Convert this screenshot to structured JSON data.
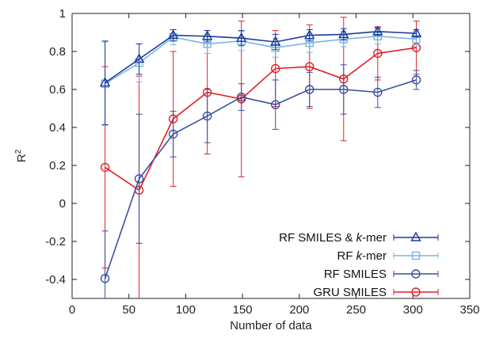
{
  "chart_data": {
    "type": "line",
    "xlabel": "Number of data",
    "ylabel": "R²",
    "ylabel_parts": {
      "base": "R",
      "sup": "2"
    },
    "xlim": [
      0,
      350
    ],
    "ylim": [
      -0.5,
      1.0
    ],
    "xticks": [
      0,
      50,
      100,
      150,
      200,
      250,
      300,
      350
    ],
    "yticks": [
      -0.4,
      -0.2,
      0,
      0.2,
      0.4,
      0.6,
      0.8,
      1
    ],
    "xtick_labels": [
      "0",
      "50",
      "100",
      "150",
      "200",
      "250",
      "300",
      "350"
    ],
    "ytick_labels": [
      "-0.4",
      "-0.2",
      "0",
      "0.2",
      "0.4",
      "0.6",
      "0.8",
      "1"
    ],
    "grid": false,
    "legend_position": "bottom-right",
    "x": [
      29,
      59,
      89,
      119,
      149,
      179,
      209,
      239,
      269,
      303
    ],
    "series": [
      {
        "name": "RF SMILES & k-mer",
        "name_parts": [
          "RF SMILES & ",
          "k",
          "-mer"
        ],
        "marker": "triangle",
        "color": "#1c3a9e",
        "values": [
          0.635,
          0.76,
          0.885,
          0.88,
          0.87,
          0.85,
          0.885,
          0.89,
          0.905,
          0.895
        ],
        "err": [
          0.22,
          0.08,
          0.03,
          0.03,
          0.04,
          0.04,
          0.03,
          0.03,
          0.02,
          0.02
        ]
      },
      {
        "name": "RF k-mer",
        "name_parts": [
          "RF ",
          "k",
          "-mer"
        ],
        "marker": "square",
        "color": "#78b6e0",
        "values": [
          0.63,
          0.74,
          0.875,
          0.84,
          0.855,
          0.82,
          0.845,
          0.865,
          0.88,
          0.865
        ],
        "err": [
          0.22,
          0.1,
          0.04,
          0.05,
          0.05,
          0.05,
          0.05,
          0.04,
          0.04,
          0.04
        ]
      },
      {
        "name": "RF SMILES",
        "name_parts": [
          "RF SMILES"
        ],
        "marker": "circle",
        "color": "#3a4f9e",
        "values": [
          -0.395,
          0.13,
          0.365,
          0.46,
          0.56,
          0.52,
          0.6,
          0.6,
          0.585,
          0.65
        ],
        "err": [
          0.25,
          0.34,
          0.12,
          0.14,
          0.07,
          0.13,
          0.09,
          0.13,
          0.08,
          0.05
        ]
      },
      {
        "name": "GRU SMILES",
        "name_parts": [
          "GRU SMILES"
        ],
        "marker": "circle",
        "color": "#e0202a",
        "values": [
          0.19,
          0.07,
          0.445,
          0.585,
          0.55,
          0.71,
          0.72,
          0.655,
          0.79,
          0.82
        ],
        "err": [
          0.53,
          0.6,
          0.355,
          0.325,
          0.41,
          0.2,
          0.22,
          0.325,
          0.14,
          0.14
        ]
      }
    ]
  }
}
